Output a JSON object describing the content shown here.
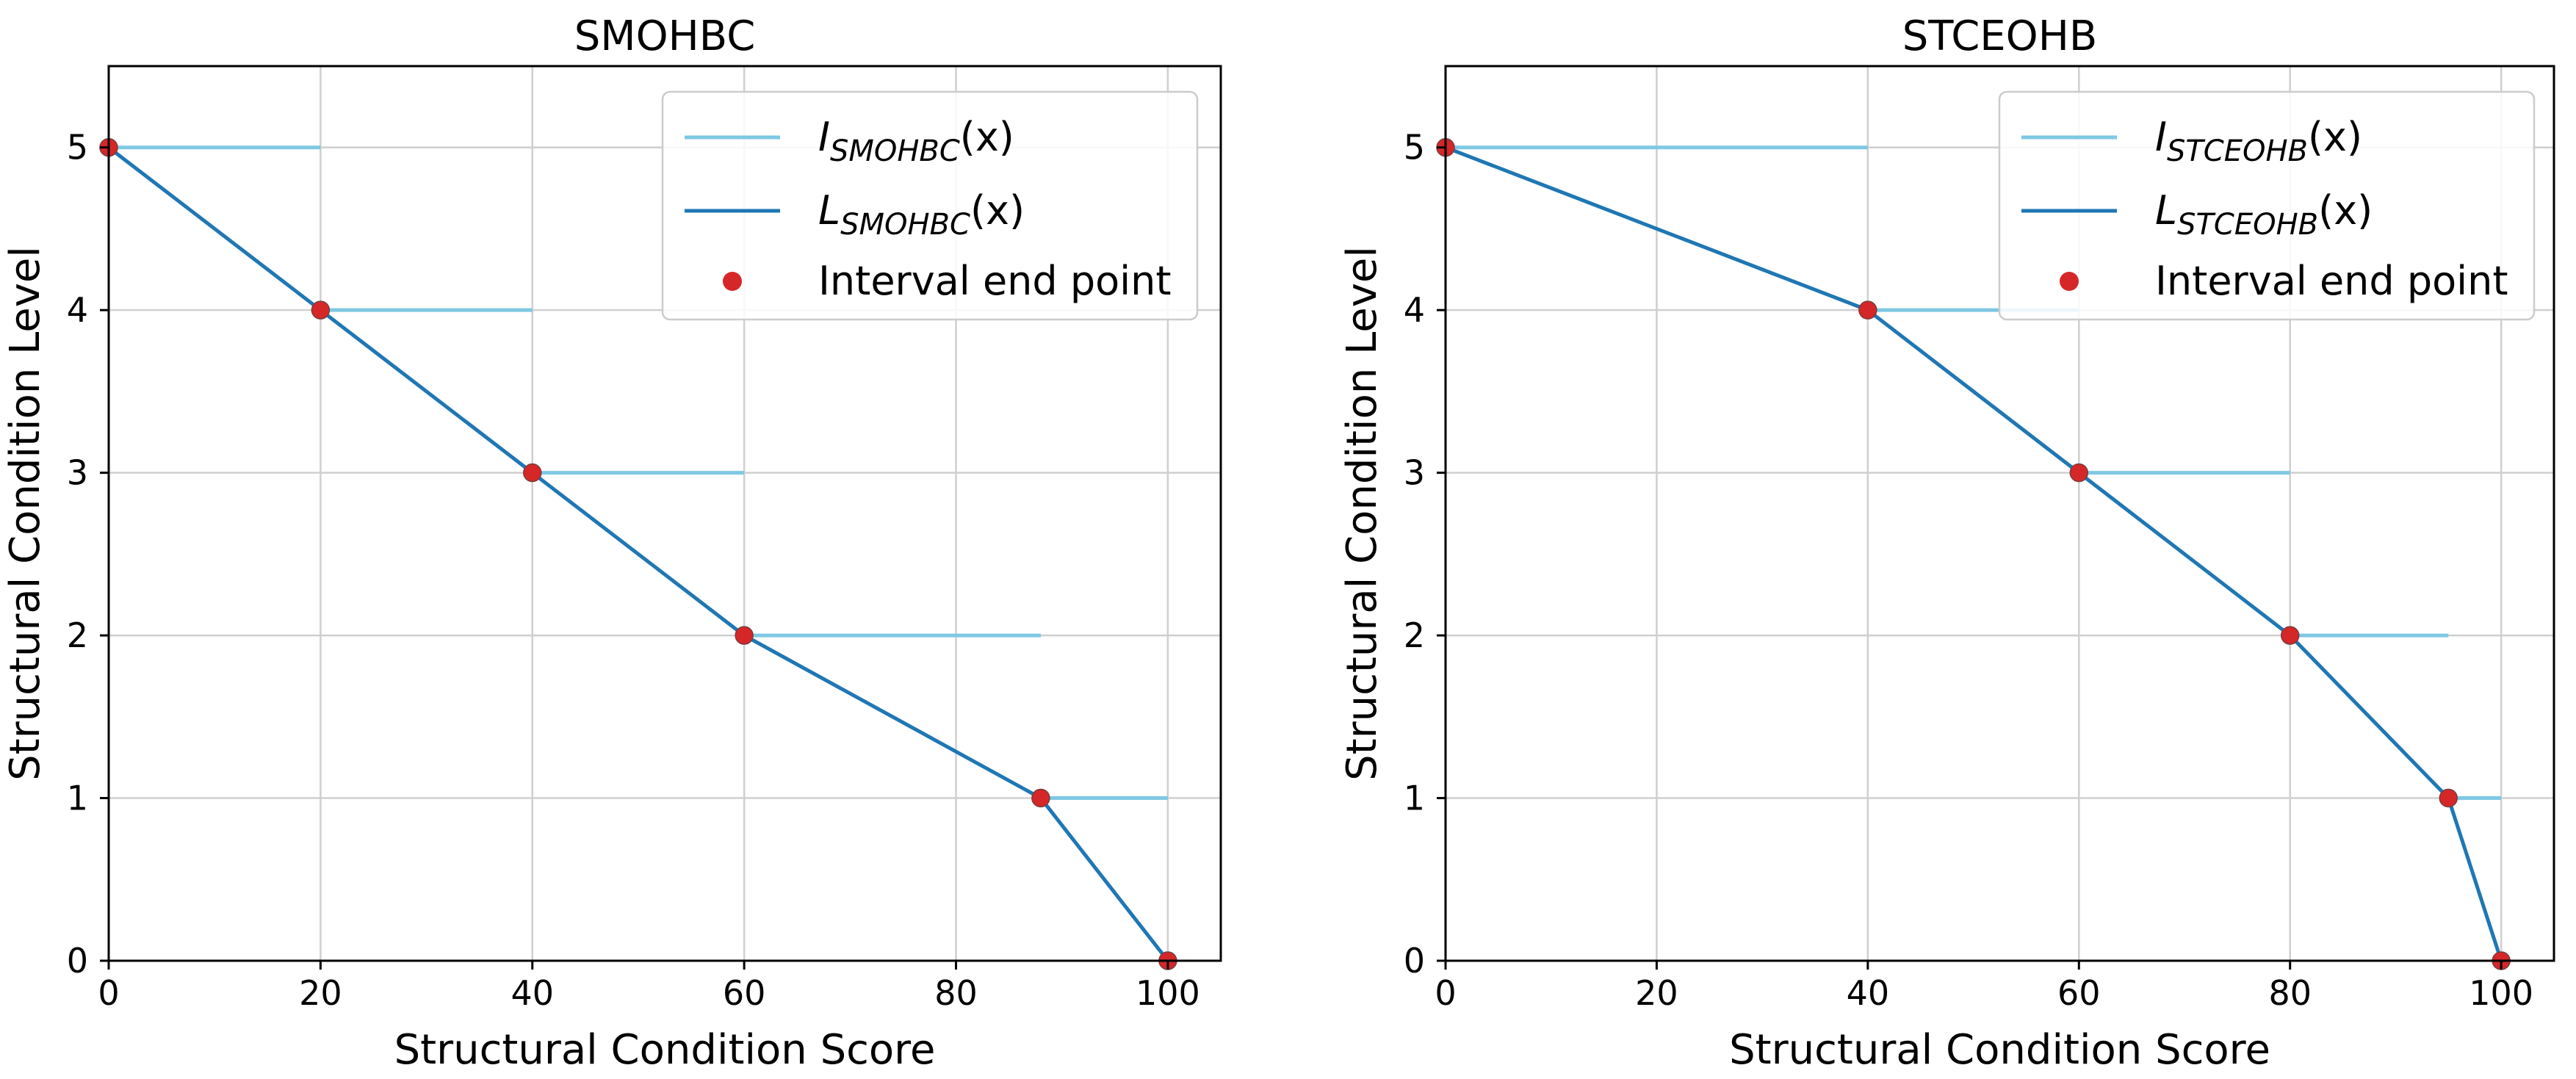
{
  "colors": {
    "interval_line": "#7ec8e3",
    "level_line": "#1f77b4",
    "end_point": "#d62728",
    "end_point_edge": "#7a3c3c"
  },
  "chart_data": [
    {
      "type": "line",
      "title": "SMOHBC",
      "xlabel": "Structural Condition Score",
      "ylabel": "Structural Condition Level",
      "xlim": [
        0,
        105
      ],
      "ylim": [
        0,
        5.5
      ],
      "grid": true,
      "xticks": [
        0,
        20,
        40,
        60,
        80,
        100
      ],
      "yticks": [
        0,
        1,
        2,
        3,
        4,
        5
      ],
      "xtick_labels": [
        "0",
        "20",
        "40",
        "60",
        "80",
        "100"
      ],
      "ytick_labels": [
        "0",
        "1",
        "2",
        "3",
        "4",
        "5"
      ],
      "legend_position": "top-right",
      "legend": {
        "interval": {
          "main": "I",
          "sub": "SMOHBC",
          "suffix": "(x)"
        },
        "level": {
          "main": "L",
          "sub": "SMOHBC",
          "suffix": "(x)"
        },
        "points": "Interval end point"
      },
      "intervals": [
        {
          "level": 5,
          "x_start": 0,
          "x_end": 20
        },
        {
          "level": 4,
          "x_start": 20,
          "x_end": 40
        },
        {
          "level": 3,
          "x_start": 40,
          "x_end": 60
        },
        {
          "level": 2,
          "x_start": 60,
          "x_end": 88
        },
        {
          "level": 1,
          "x_start": 88,
          "x_end": 100
        }
      ],
      "level_line": {
        "x": [
          0,
          20,
          40,
          60,
          88,
          100
        ],
        "y": [
          5,
          4,
          3,
          2,
          1,
          0
        ]
      },
      "end_points": {
        "x": [
          0,
          20,
          40,
          60,
          88,
          100
        ],
        "y": [
          5,
          4,
          3,
          2,
          1,
          0
        ]
      }
    },
    {
      "type": "line",
      "title": "STCEOHB",
      "xlabel": "Structural Condition Score",
      "ylabel": "Structural Condition Level",
      "xlim": [
        0,
        105
      ],
      "ylim": [
        0,
        5.5
      ],
      "grid": true,
      "xticks": [
        0,
        20,
        40,
        60,
        80,
        100
      ],
      "yticks": [
        0,
        1,
        2,
        3,
        4,
        5
      ],
      "xtick_labels": [
        "0",
        "20",
        "40",
        "60",
        "80",
        "100"
      ],
      "ytick_labels": [
        "0",
        "1",
        "2",
        "3",
        "4",
        "5"
      ],
      "legend_position": "top-right",
      "legend": {
        "interval": {
          "main": "I",
          "sub": "STCEOHB",
          "suffix": "(x)"
        },
        "level": {
          "main": "L",
          "sub": "STCEOHB",
          "suffix": "(x)"
        },
        "points": "Interval end point"
      },
      "intervals": [
        {
          "level": 5,
          "x_start": 0,
          "x_end": 40
        },
        {
          "level": 4,
          "x_start": 40,
          "x_end": 60
        },
        {
          "level": 3,
          "x_start": 60,
          "x_end": 80
        },
        {
          "level": 2,
          "x_start": 80,
          "x_end": 95
        },
        {
          "level": 1,
          "x_start": 95,
          "x_end": 100
        }
      ],
      "level_line": {
        "x": [
          0,
          40,
          60,
          80,
          95,
          100
        ],
        "y": [
          5,
          4,
          3,
          2,
          1,
          0
        ]
      },
      "end_points": {
        "x": [
          0,
          40,
          60,
          80,
          95,
          100
        ],
        "y": [
          5,
          4,
          3,
          2,
          1,
          0
        ]
      }
    }
  ]
}
